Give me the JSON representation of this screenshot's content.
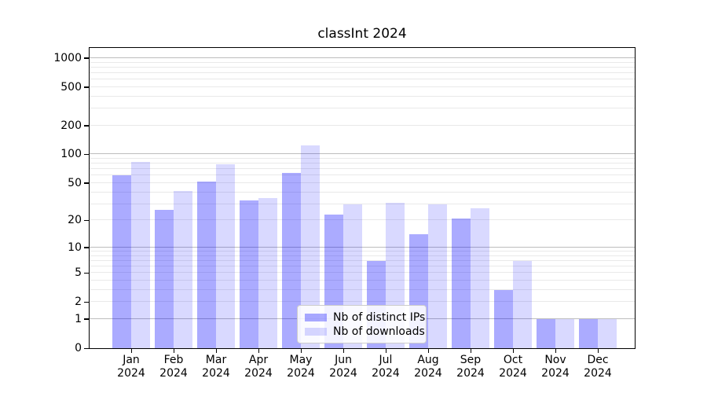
{
  "chart_data": {
    "type": "bar",
    "title": "classInt 2024",
    "categories": [
      "Jan",
      "Feb",
      "Mar",
      "Apr",
      "May",
      "Jun",
      "Jul",
      "Aug",
      "Sep",
      "Oct",
      "Nov",
      "Dec"
    ],
    "year": "2024",
    "series": [
      {
        "name": "Nb of distinct IPs",
        "color": "rgba(0,0,255,0.33)",
        "solid_hex": "#ababff",
        "values": [
          60,
          26,
          52,
          33,
          64,
          23,
          7,
          14,
          21,
          3,
          1,
          1
        ]
      },
      {
        "name": "Nb of downloads",
        "color": "rgba(0,0,255,0.15)",
        "solid_hex": "#d9d9ff",
        "values": [
          84,
          41,
          79,
          35,
          125,
          30,
          31,
          30,
          27,
          7,
          1,
          1
        ]
      }
    ],
    "yticks": [
      0,
      1,
      2,
      5,
      10,
      20,
      50,
      100,
      200,
      500,
      1000
    ],
    "y_major_gridlines": [
      1,
      10,
      100,
      1000
    ],
    "y_scale": "log10(value+1)",
    "ylim": [
      0,
      1200
    ],
    "grid": true,
    "legend_position": "lower center",
    "xlabel": "",
    "ylabel": ""
  },
  "colors": {
    "background": "#ffffff",
    "grid_major": "#bdbdbd",
    "grid_minor": "#e9e9e9",
    "spine": "#000000",
    "text": "#000000",
    "legend_border": "#cccccc",
    "legend_background": "rgba(255,255,255,0.85)"
  }
}
